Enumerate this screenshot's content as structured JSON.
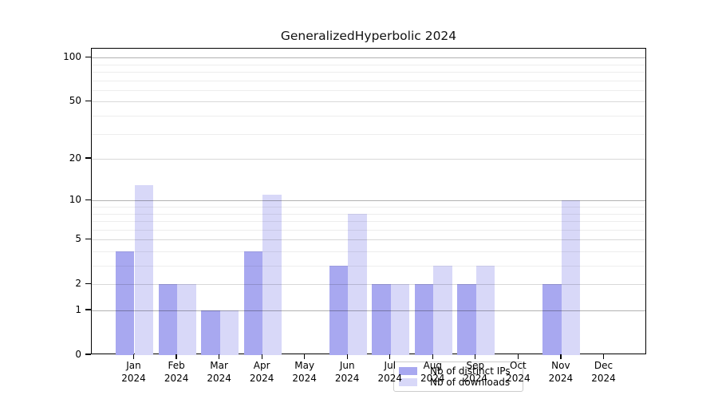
{
  "chart_data": {
    "type": "bar",
    "title": "GeneralizedHyperbolic 2024",
    "categories": [
      "Jan 2024",
      "Feb 2024",
      "Mar 2024",
      "Apr 2024",
      "May 2024",
      "Jun 2024",
      "Jul 2024",
      "Aug 2024",
      "Sep 2024",
      "Oct 2024",
      "Nov 2024",
      "Dec 2024"
    ],
    "series": [
      {
        "name": "Nb of distinct IPs",
        "color": "#a8a8f0",
        "values": [
          4,
          2,
          1,
          4,
          0,
          3,
          2,
          2,
          2,
          0,
          2,
          0
        ]
      },
      {
        "name": "Nb of downloads",
        "color": "#d8d8f8",
        "values": [
          13,
          2,
          1,
          11,
          0,
          8,
          2,
          3,
          3,
          0,
          10,
          0
        ]
      }
    ],
    "y_scale": "log1p",
    "y_max": 115,
    "y_ticks": [
      0,
      1,
      2,
      5,
      10,
      20,
      50,
      100
    ],
    "gridlines_major": [
      1,
      10,
      100
    ],
    "gridlines_mid": [
      2,
      5,
      20,
      50
    ],
    "gridlines_minor": [
      3,
      4,
      6,
      7,
      8,
      9,
      30,
      40,
      60,
      70,
      80,
      90
    ],
    "grid_major_color": "rgba(0,0,0,0.30)",
    "grid_mid_color": "rgba(0,0,0,0.15)",
    "grid_minor_color": "rgba(0,0,0,0.07)",
    "axis_color": "#000000",
    "legend_position": "bottom-center",
    "xlabel": "",
    "ylabel": ""
  }
}
